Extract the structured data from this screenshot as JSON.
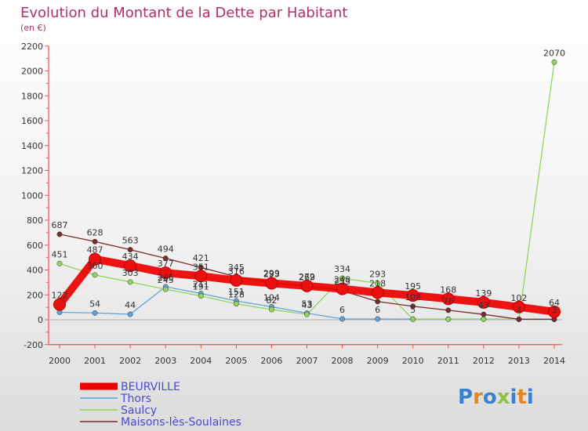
{
  "header": {
    "title": "Evolution du Montant de la Dette par Habitant",
    "subtitle": "(en €)"
  },
  "logo": {
    "text": "Proxiti",
    "colors": [
      "#3a7fd0",
      "#e8841f",
      "#3a7fd0",
      "#8bc34a",
      "#3a7fd0",
      "#e8841f",
      "#3a7fd0"
    ]
  },
  "chart_data": {
    "type": "line",
    "title": "Evolution du Montant de la Dette par Habitant",
    "subtitle": "(en €)",
    "xlabel": "",
    "ylabel": "",
    "x": [
      2000,
      2001,
      2002,
      2003,
      2004,
      2005,
      2006,
      2007,
      2008,
      2009,
      2010,
      2011,
      2012,
      2013,
      2014
    ],
    "ylim": [
      -200,
      2200
    ],
    "yticks": [
      -200,
      0,
      200,
      400,
      600,
      800,
      1000,
      1200,
      1400,
      1600,
      1800,
      2000,
      2200
    ],
    "grid": false,
    "legend_position": "bottom-left",
    "series": [
      {
        "name": "BEURVILLE",
        "color": "#ee0000",
        "emphasis": true,
        "values": [
          122,
          487,
          434,
          377,
          351,
          316,
          293,
          272,
          248,
          218,
          195,
          168,
          139,
          102,
          64
        ]
      },
      {
        "name": "Thors",
        "color": "#5fa3d9",
        "values": [
          60,
          54,
          44,
          265,
          211,
          151,
          104,
          53,
          6,
          6,
          5,
          5,
          5,
          4,
          3
        ]
      },
      {
        "name": "Saulcy",
        "color": "#8fd65a",
        "values": [
          451,
          360,
          303,
          245,
          191,
          128,
          82,
          43,
          334,
          293,
          5,
          4,
          4,
          4,
          2070
        ]
      },
      {
        "name": "Maisons-lès-Soulaines",
        "color": "#7a2a2a",
        "values": [
          687,
          628,
          563,
          494,
          421,
          345,
          299,
          269,
          233,
          146,
          108,
          76,
          43,
          4,
          4
        ]
      }
    ],
    "labels": [
      {
        "series": "Maisons-lès-Soulaines",
        "x": 2000,
        "text": "687"
      },
      {
        "series": "Maisons-lès-Soulaines",
        "x": 2001,
        "text": "628"
      },
      {
        "series": "Maisons-lès-Soulaines",
        "x": 2002,
        "text": "563"
      },
      {
        "series": "Maisons-lès-Soulaines",
        "x": 2003,
        "text": "494"
      },
      {
        "series": "Maisons-lès-Soulaines",
        "x": 2004,
        "text": "421"
      },
      {
        "series": "Maisons-lès-Soulaines",
        "x": 2005,
        "text": "345"
      },
      {
        "series": "Maisons-lès-Soulaines",
        "x": 2006,
        "text": "299"
      },
      {
        "series": "Maisons-lès-Soulaines",
        "x": 2007,
        "text": "269"
      },
      {
        "series": "Saulcy",
        "x": 2000,
        "text": "451"
      },
      {
        "series": "Saulcy",
        "x": 2001,
        "text": "360"
      },
      {
        "series": "Saulcy",
        "x": 2002,
        "text": "303"
      },
      {
        "series": "Saulcy",
        "x": 2003,
        "text": "245"
      },
      {
        "series": "Saulcy",
        "x": 2004,
        "text": "191"
      },
      {
        "series": "Saulcy",
        "x": 2005,
        "text": "128"
      },
      {
        "series": "Saulcy",
        "x": 2006,
        "text": "82"
      },
      {
        "series": "Saulcy",
        "x": 2007,
        "text": "43"
      },
      {
        "series": "Saulcy",
        "x": 2008,
        "text": "334"
      },
      {
        "series": "Saulcy",
        "x": 2009,
        "text": "293"
      },
      {
        "series": "Saulcy",
        "x": 2014,
        "text": "2070"
      },
      {
        "series": "BEURVILLE",
        "x": 2000,
        "text": "122"
      },
      {
        "series": "BEURVILLE",
        "x": 2001,
        "text": "487"
      },
      {
        "series": "BEURVILLE",
        "x": 2002,
        "text": "434"
      },
      {
        "series": "BEURVILLE",
        "x": 2003,
        "text": "377"
      },
      {
        "series": "BEURVILLE",
        "x": 2004,
        "text": "351"
      },
      {
        "series": "BEURVILLE",
        "x": 2005,
        "text": "316"
      },
      {
        "series": "BEURVILLE",
        "x": 2006,
        "text": "293"
      },
      {
        "series": "BEURVILLE",
        "x": 2007,
        "text": "272"
      },
      {
        "series": "BEURVILLE",
        "x": 2008,
        "text": "248"
      },
      {
        "series": "BEURVILLE",
        "x": 2009,
        "text": "218"
      },
      {
        "series": "BEURVILLE",
        "x": 2010,
        "text": "195"
      },
      {
        "series": "BEURVILLE",
        "x": 2011,
        "text": "168"
      },
      {
        "series": "BEURVILLE",
        "x": 2012,
        "text": "139"
      },
      {
        "series": "BEURVILLE",
        "x": 2013,
        "text": "102"
      },
      {
        "series": "BEURVILLE",
        "x": 2014,
        "text": "64"
      },
      {
        "series": "Thors",
        "x": 2001,
        "text": "54"
      },
      {
        "series": "Thors",
        "x": 2002,
        "text": "44"
      },
      {
        "series": "Thors",
        "x": 2003,
        "text": "265"
      },
      {
        "series": "Thors",
        "x": 2004,
        "text": "211"
      },
      {
        "series": "Thors",
        "x": 2005,
        "text": "151"
      },
      {
        "series": "Thors",
        "x": 2006,
        "text": "104"
      },
      {
        "series": "Thors",
        "x": 2007,
        "text": "53"
      },
      {
        "series": "Thors",
        "x": 2008,
        "text": "6"
      },
      {
        "series": "Thors",
        "x": 2009,
        "text": "6"
      },
      {
        "series": "Maisons-lès-Soulaines",
        "x": 2008,
        "text": "233"
      },
      {
        "series": "Maisons-lès-Soulaines",
        "x": 2010,
        "text": "108"
      },
      {
        "series": "Maisons-lès-Soulaines",
        "x": 2011,
        "text": "76"
      },
      {
        "series": "Maisons-lès-Soulaines",
        "x": 2012,
        "text": "43"
      },
      {
        "series": "Thors",
        "x": 2010,
        "text": "5"
      },
      {
        "series": "Thors",
        "x": 2013,
        "text": "4"
      },
      {
        "series": "Thors",
        "x": 2014,
        "text": "3"
      }
    ]
  }
}
